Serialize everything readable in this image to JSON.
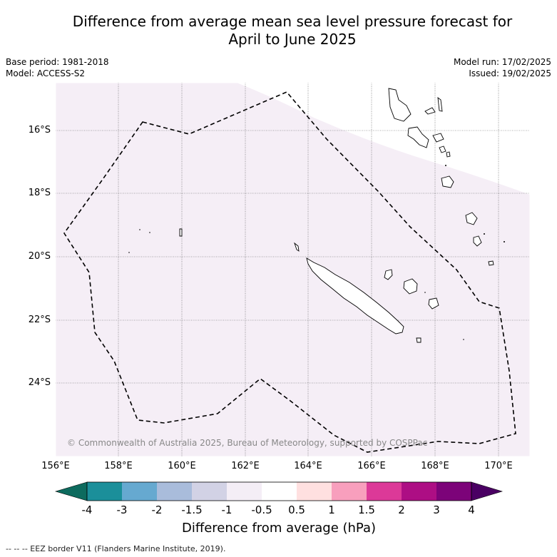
{
  "title_line1": "Difference from average mean sea level pressure forecast for",
  "title_line2": "April to June 2025",
  "meta_left": {
    "base_period": "Base period: 1981-2018",
    "model": "Model: ACCESS-S2"
  },
  "meta_right": {
    "model_run": "Model run: 17/02/2025",
    "issued": "Issued: 19/02/2025"
  },
  "map": {
    "lon_labels": [
      "156°E",
      "158°E",
      "160°E",
      "162°E",
      "164°E",
      "166°E",
      "168°E",
      "170°E"
    ],
    "lat_labels": [
      "16°S",
      "18°S",
      "20°S",
      "22°S",
      "24°S"
    ],
    "credit": "© Commonwealth of Australia 2025, Bureau of Meteorology, supported by COSPPac",
    "field_colour": "#f5eef6",
    "land_colour": "#ffffff",
    "eez_colour": "#000000"
  },
  "colorbar": {
    "labels": [
      "-4",
      "-3",
      "-2",
      "-1.5",
      "-1",
      "-0.5",
      "0.5",
      "1",
      "1.5",
      "2",
      "3",
      "4"
    ],
    "colors": [
      "#0d6b5e",
      "#1b8f9a",
      "#66a9d0",
      "#a9bcdb",
      "#d2d2e5",
      "#f4eef6",
      "#ffffff",
      "#ffe0e0",
      "#f89fbd",
      "#dc3998",
      "#ad0e84",
      "#7c0379",
      "#4a0063"
    ],
    "title": "Difference from average (hPa)"
  },
  "footer": "-- -- -- EEZ border V11 (Flanders Marine Institute, 2019)."
}
